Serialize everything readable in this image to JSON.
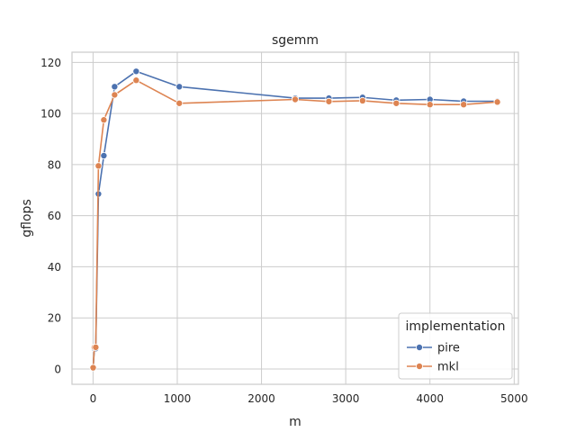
{
  "chart_data": {
    "type": "line",
    "title": "sgemm",
    "xlabel": "m",
    "ylabel": "gflops",
    "xlim": [
      -250,
      5050
    ],
    "ylim": [
      -6,
      124
    ],
    "xticks": [
      0,
      1000,
      2000,
      3000,
      4000,
      5000
    ],
    "yticks": [
      0,
      20,
      40,
      60,
      80,
      100,
      120
    ],
    "grid": true,
    "legend": {
      "title": "implementation",
      "placement": "lower-right"
    },
    "series": [
      {
        "name": "pire",
        "color": "#4c72b0",
        "x": [
          1,
          16,
          32,
          64,
          128,
          256,
          512,
          1024,
          2400,
          2800,
          3200,
          3600,
          4000,
          4400,
          4800
        ],
        "y": [
          0.5,
          8,
          8,
          68.5,
          83.5,
          110.5,
          116.5,
          110.5,
          106,
          106,
          106.3,
          105.2,
          105.5,
          104.8,
          104.8
        ]
      },
      {
        "name": "mkl",
        "color": "#dd8452",
        "x": [
          1,
          16,
          32,
          64,
          128,
          256,
          512,
          1024,
          2400,
          2800,
          3200,
          3600,
          4000,
          4400,
          4800
        ],
        "y": [
          0.5,
          8.5,
          8.5,
          79.5,
          97.5,
          107.3,
          113,
          104,
          105.5,
          104.7,
          105,
          104,
          103.5,
          103.5,
          104.5
        ]
      }
    ]
  }
}
